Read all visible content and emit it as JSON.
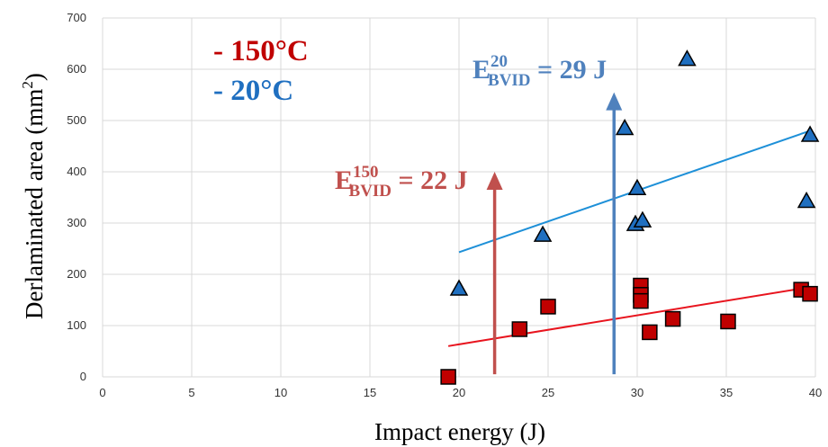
{
  "chart_data": {
    "type": "scatter",
    "xlabel": "Impact energy (J)",
    "ylabel": "Derlaminated area (mm²)",
    "ylabel_parts": {
      "main": "Derlaminated area (mm",
      "sup": "2",
      "end": ")"
    },
    "xlim": [
      0,
      40
    ],
    "ylim": [
      0,
      700
    ],
    "xticks": [
      0,
      5,
      10,
      15,
      20,
      25,
      30,
      35,
      40
    ],
    "yticks": [
      0,
      100,
      200,
      300,
      400,
      500,
      600,
      700
    ],
    "grid": true,
    "legend": {
      "position": "top-left"
    },
    "series": [
      {
        "name": "150°C",
        "legend_label": "- 150°C",
        "marker": "square",
        "color": "#c00000",
        "points": [
          [
            19.4,
            0
          ],
          [
            23.4,
            93
          ],
          [
            25.0,
            137
          ],
          [
            30.2,
            178
          ],
          [
            30.2,
            160
          ],
          [
            30.2,
            148
          ],
          [
            30.7,
            87
          ],
          [
            32.0,
            113
          ],
          [
            35.1,
            108
          ],
          [
            39.2,
            170
          ],
          [
            39.7,
            162
          ]
        ],
        "trendline": {
          "x": [
            19.4,
            39.7
          ],
          "y": [
            60,
            175
          ],
          "color": "#e8141e"
        }
      },
      {
        "name": "20°C",
        "legend_label": "- 20°C",
        "marker": "triangle",
        "color": "#1f6fc0",
        "points": [
          [
            20.0,
            172
          ],
          [
            24.7,
            277
          ],
          [
            29.3,
            485
          ],
          [
            29.9,
            298
          ],
          [
            30.0,
            368
          ],
          [
            30.3,
            305
          ],
          [
            32.8,
            620
          ],
          [
            39.5,
            343
          ],
          [
            39.7,
            472
          ]
        ],
        "trendline": {
          "x": [
            20.0,
            39.7
          ],
          "y": [
            243,
            480
          ],
          "color": "#1e90d8"
        }
      }
    ],
    "annotations": [
      {
        "label": {
          "base": "E",
          "sup": "150",
          "sub": "BVID",
          "rest": " = 22 J"
        },
        "color": "#c0504d",
        "arrow_x": 22,
        "arrow_from_y": 5,
        "arrow_to_y": 400
      },
      {
        "label": {
          "base": "E",
          "sup": "20",
          "sub": "BVID",
          "rest": " = 29 J"
        },
        "color": "#4f81bd",
        "arrow_x": 28.7,
        "arrow_from_y": 5,
        "arrow_to_y": 555
      }
    ]
  }
}
